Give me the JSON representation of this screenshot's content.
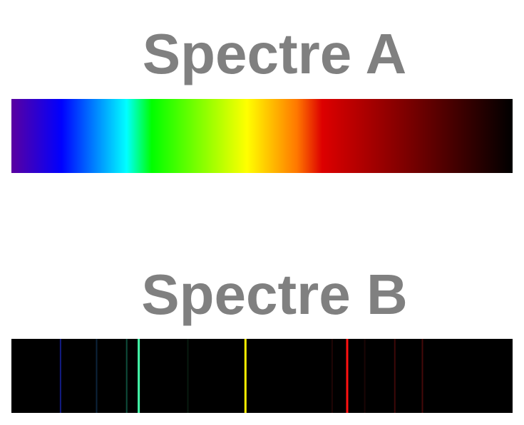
{
  "spectrum_a": {
    "title": "Spectre A",
    "type": "continuous",
    "gradient_stops": [
      {
        "position": 0.0,
        "color": "#5a00a0"
      },
      {
        "position": 0.1,
        "color": "#0000ff"
      },
      {
        "position": 0.23,
        "color": "#00ffff"
      },
      {
        "position": 0.28,
        "color": "#00ff00"
      },
      {
        "position": 0.47,
        "color": "#ffff00"
      },
      {
        "position": 0.57,
        "color": "#ff7700"
      },
      {
        "position": 0.62,
        "color": "#dd0000"
      },
      {
        "position": 0.82,
        "color": "#6a0000"
      },
      {
        "position": 1.0,
        "color": "#000000"
      }
    ]
  },
  "spectrum_b": {
    "title": "Spectre B",
    "type": "emission",
    "background_color": "#000000",
    "lines": [
      {
        "position": 0.098,
        "color": "#2233ee",
        "intensity": 0.55
      },
      {
        "position": 0.17,
        "color": "#2266aa",
        "intensity": 0.35
      },
      {
        "position": 0.23,
        "color": "#1a9977",
        "intensity": 0.5
      },
      {
        "position": 0.254,
        "color": "#44ffaa",
        "intensity": 1.0
      },
      {
        "position": 0.352,
        "color": "#1a5533",
        "intensity": 0.25
      },
      {
        "position": 0.467,
        "color": "#ffee00",
        "intensity": 1.0
      },
      {
        "position": 0.64,
        "color": "#661111",
        "intensity": 0.3
      },
      {
        "position": 0.67,
        "color": "#ff1111",
        "intensity": 1.0
      },
      {
        "position": 0.705,
        "color": "#551111",
        "intensity": 0.25
      },
      {
        "position": 0.765,
        "color": "#881111",
        "intensity": 0.45
      },
      {
        "position": 0.82,
        "color": "#881111",
        "intensity": 0.5
      }
    ]
  }
}
